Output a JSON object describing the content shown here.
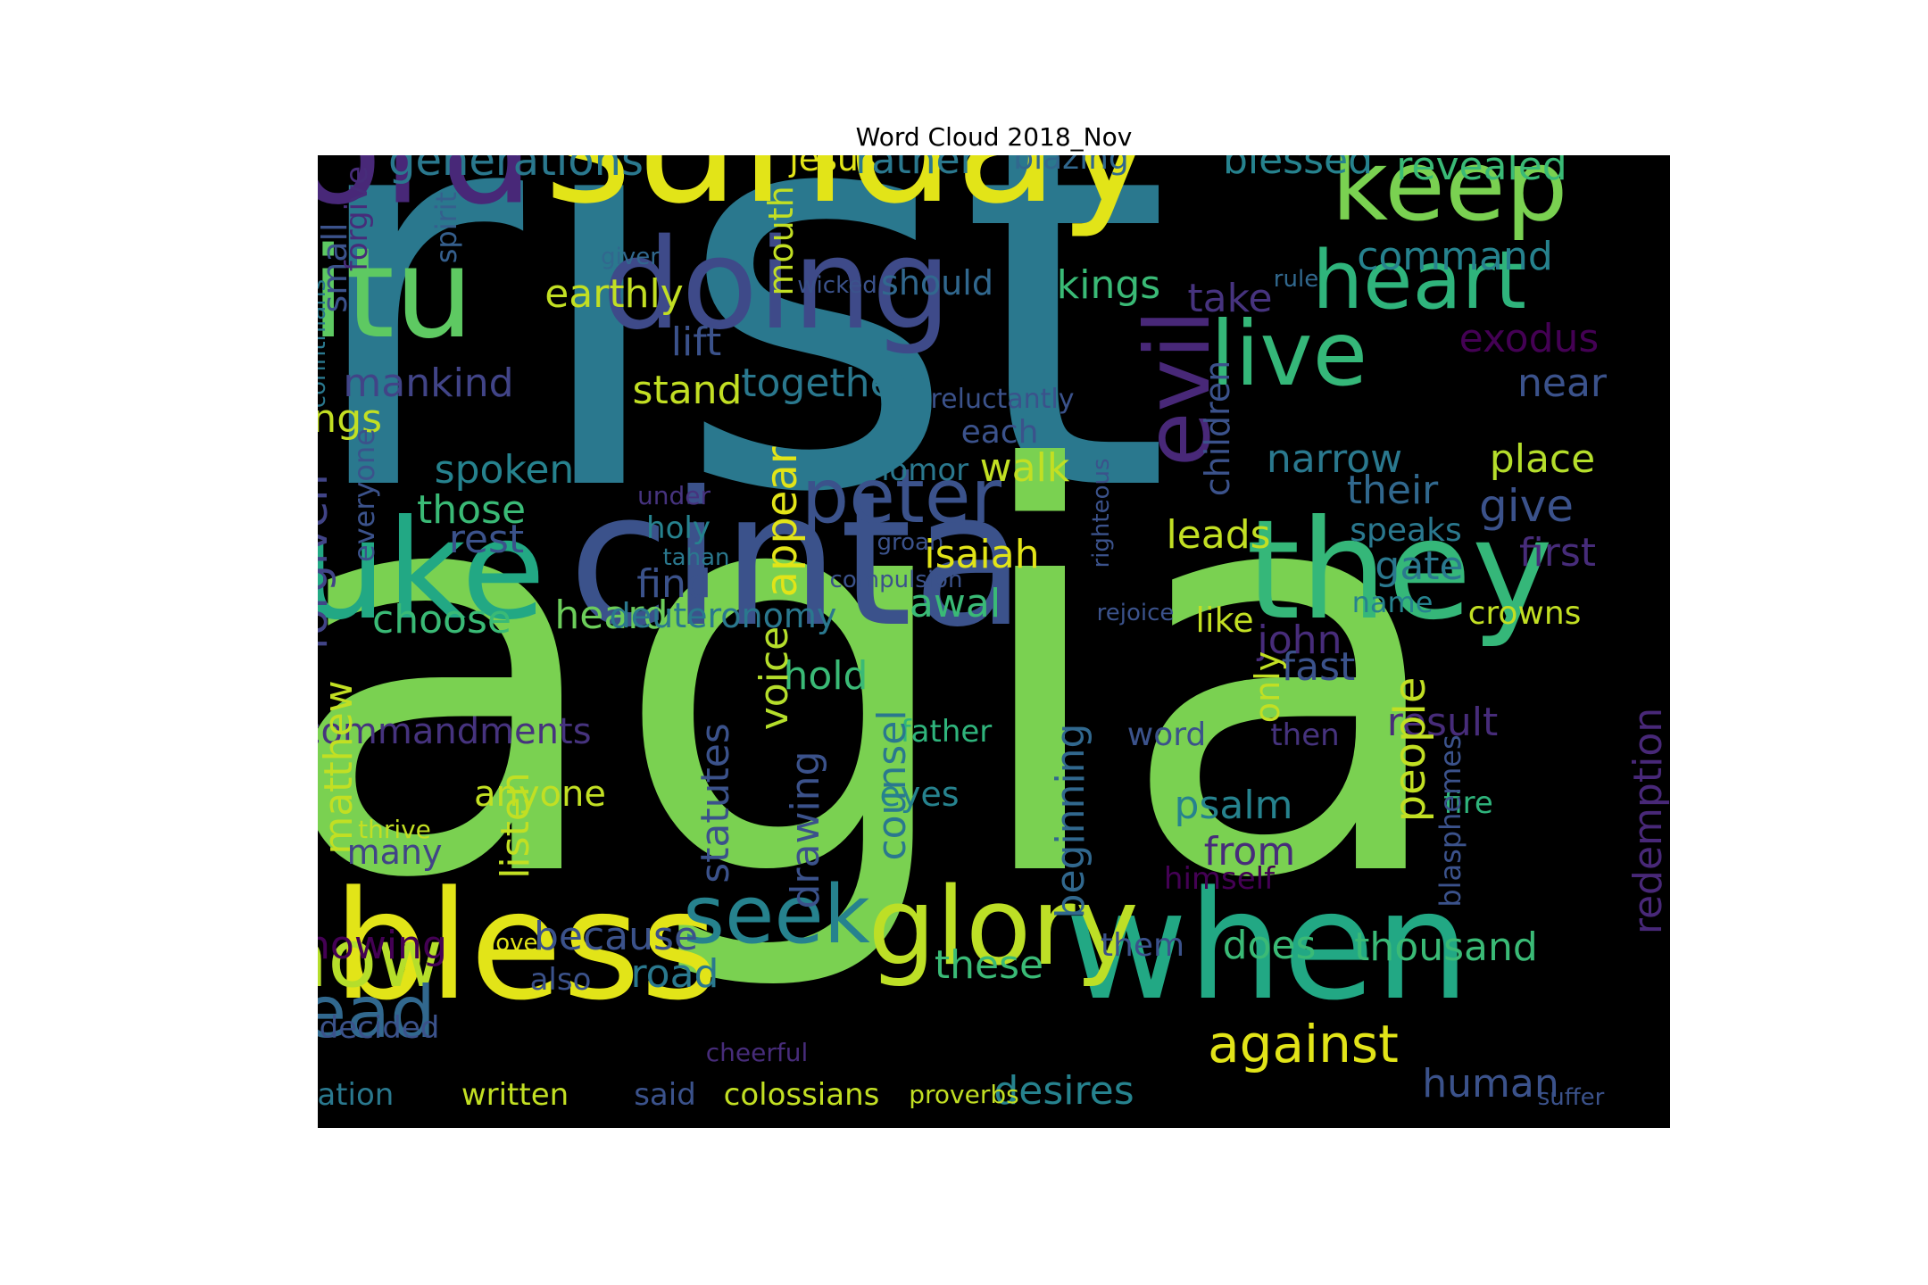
{
  "chart_data": {
    "type": "wordcloud",
    "title": "Word Cloud 2018_Nov",
    "words": [
      {
        "text": "christ",
        "color": "#2a788e"
      },
      {
        "text": "bahagia",
        "color": "#7ad151"
      },
      {
        "text": "cinta",
        "color": "#3b528b"
      },
      {
        "text": "sunday",
        "color": "#e2e418"
      },
      {
        "text": "lord",
        "color": "#482878"
      },
      {
        "text": "bless",
        "color": "#e2e418"
      },
      {
        "text": "when",
        "color": "#22a884"
      },
      {
        "text": "luke",
        "color": "#22a884"
      },
      {
        "text": "they",
        "color": "#35b779"
      },
      {
        "text": "doing",
        "color": "#3e4a89"
      },
      {
        "text": "gitu",
        "color": "#5ec962"
      },
      {
        "text": "glory",
        "color": "#bddf26"
      },
      {
        "text": "keep",
        "color": "#7ad151"
      },
      {
        "text": "heart",
        "color": "#2fb47c"
      },
      {
        "text": "live",
        "color": "#35b779"
      },
      {
        "text": "peter",
        "color": "#3b528b"
      },
      {
        "text": "evil",
        "color": "#482878"
      },
      {
        "text": "know",
        "color": "#b5de2b"
      },
      {
        "text": "head",
        "color": "#31688e"
      },
      {
        "text": "seek",
        "color": "#26828e"
      },
      {
        "text": "against",
        "color": "#e2e418"
      },
      {
        "text": "generations",
        "color": "#2a788e"
      },
      {
        "text": "jesus",
        "color": "#e2e418"
      },
      {
        "text": "rather",
        "color": "#2a788e"
      },
      {
        "text": "blazing",
        "color": "#31688e"
      },
      {
        "text": "blessed",
        "color": "#26828e"
      },
      {
        "text": "revealed",
        "color": "#3aba76"
      },
      {
        "text": "command",
        "color": "#26828e"
      },
      {
        "text": "giver",
        "color": "#31688e"
      },
      {
        "text": "should",
        "color": "#31688e"
      },
      {
        "text": "wicked",
        "color": "#3b528b"
      },
      {
        "text": "rule",
        "color": "#31688e"
      },
      {
        "text": "kings",
        "color": "#3aba76"
      },
      {
        "text": "take",
        "color": "#46337e"
      },
      {
        "text": "earthly",
        "color": "#c2df23"
      },
      {
        "text": "mouth",
        "color": "#c2df23"
      },
      {
        "text": "small",
        "color": "#3b528b"
      },
      {
        "text": "forgive",
        "color": "#472c7a"
      },
      {
        "text": "spirit",
        "color": "#355f8d"
      },
      {
        "text": "corinthians",
        "color": "#2a788e"
      },
      {
        "text": "exodus",
        "color": "#440154"
      },
      {
        "text": "lift",
        "color": "#3b528b"
      },
      {
        "text": "mankind",
        "color": "#414487"
      },
      {
        "text": "stand",
        "color": "#c2df23"
      },
      {
        "text": "together",
        "color": "#2a788e"
      },
      {
        "text": "reluctantly",
        "color": "#3b528b"
      },
      {
        "text": "near",
        "color": "#3b528b"
      },
      {
        "text": "things",
        "color": "#c2df23"
      },
      {
        "text": "each",
        "color": "#3b528b"
      },
      {
        "text": "children",
        "color": "#3b528b"
      },
      {
        "text": "narrow",
        "color": "#2a788e"
      },
      {
        "text": "place",
        "color": "#b5de2b"
      },
      {
        "text": "spoken",
        "color": "#26828e"
      },
      {
        "text": "nomor",
        "color": "#2a788e"
      },
      {
        "text": "walk",
        "color": "#c2df23"
      },
      {
        "text": "appear",
        "color": "#e2e418"
      },
      {
        "text": "forgiven",
        "color": "#414487"
      },
      {
        "text": "everyone",
        "color": "#3b528b"
      },
      {
        "text": "those",
        "color": "#3aba76"
      },
      {
        "text": "rest",
        "color": "#3b528b"
      },
      {
        "text": "under",
        "color": "#46337e"
      },
      {
        "text": "holy",
        "color": "#26828e"
      },
      {
        "text": "tahan",
        "color": "#2a788e"
      },
      {
        "text": "righteous",
        "color": "#3b528b"
      },
      {
        "text": "groan",
        "color": "#3b528b"
      },
      {
        "text": "isaiah",
        "color": "#e2e418"
      },
      {
        "text": "leads",
        "color": "#c2df23"
      },
      {
        "text": "their",
        "color": "#31688e"
      },
      {
        "text": "give",
        "color": "#3b528b"
      },
      {
        "text": "speaks",
        "color": "#2a788e"
      },
      {
        "text": "first",
        "color": "#472c7a"
      },
      {
        "text": "gate",
        "color": "#2a788e"
      },
      {
        "text": "compulsion",
        "color": "#3b528b"
      },
      {
        "text": "find",
        "color": "#3b528b"
      },
      {
        "text": "awal",
        "color": "#3aba76"
      },
      {
        "text": "name",
        "color": "#26828e"
      },
      {
        "text": "crowns",
        "color": "#c2df23"
      },
      {
        "text": "choose",
        "color": "#3aba76"
      },
      {
        "text": "heard",
        "color": "#6ccd5a"
      },
      {
        "text": "deuteronomy",
        "color": "#2a788e"
      },
      {
        "text": "rejoice",
        "color": "#3b528b"
      },
      {
        "text": "like",
        "color": "#c2df23"
      },
      {
        "text": "john",
        "color": "#472c7a"
      },
      {
        "text": "fast",
        "color": "#3b528b"
      },
      {
        "text": "hold",
        "color": "#3aba76"
      },
      {
        "text": "voice",
        "color": "#b5de2b"
      },
      {
        "text": "only",
        "color": "#c2df23"
      },
      {
        "text": "commandments",
        "color": "#46337e"
      },
      {
        "text": "father",
        "color": "#2fb47c"
      },
      {
        "text": "word",
        "color": "#3b528b"
      },
      {
        "text": "then",
        "color": "#46337e"
      },
      {
        "text": "result",
        "color": "#472c7a"
      },
      {
        "text": "matthew",
        "color": "#c2df23"
      },
      {
        "text": "statutes",
        "color": "#3b528b"
      },
      {
        "text": "counsel",
        "color": "#2a788e"
      },
      {
        "text": "eyes",
        "color": "#26828e"
      },
      {
        "text": "beginning",
        "color": "#31688e"
      },
      {
        "text": "people",
        "color": "#c2df23"
      },
      {
        "text": "psalm",
        "color": "#26828e"
      },
      {
        "text": "fire",
        "color": "#2fb47c"
      },
      {
        "text": "redemption",
        "color": "#482878"
      },
      {
        "text": "anyone",
        "color": "#c2df23"
      },
      {
        "text": "thrive",
        "color": "#c2df23"
      },
      {
        "text": "many",
        "color": "#414487"
      },
      {
        "text": "listen",
        "color": "#c2df23"
      },
      {
        "text": "drawing",
        "color": "#3b528b"
      },
      {
        "text": "from",
        "color": "#472c7a"
      },
      {
        "text": "himself",
        "color": "#440154"
      },
      {
        "text": "blasphemes",
        "color": "#3b528b"
      },
      {
        "text": "showing",
        "color": "#440154"
      },
      {
        "text": "loves",
        "color": "#e2e418"
      },
      {
        "text": "because",
        "color": "#3b528b"
      },
      {
        "text": "them",
        "color": "#3b528b"
      },
      {
        "text": "does",
        "color": "#3aba76"
      },
      {
        "text": "thousand",
        "color": "#3aba76"
      },
      {
        "text": "road",
        "color": "#2a788e"
      },
      {
        "text": "these",
        "color": "#3aba76"
      },
      {
        "text": "also",
        "color": "#3b528b"
      },
      {
        "text": "decided",
        "color": "#3b528b"
      },
      {
        "text": "cheerful",
        "color": "#472c7a"
      },
      {
        "text": "desires",
        "color": "#26828e"
      },
      {
        "text": "human",
        "color": "#3b528b"
      },
      {
        "text": "revelation",
        "color": "#2a788e"
      },
      {
        "text": "written",
        "color": "#c2df23"
      },
      {
        "text": "said",
        "color": "#3b528b"
      },
      {
        "text": "colossians",
        "color": "#c2df23"
      },
      {
        "text": "proverbs",
        "color": "#c2df23"
      },
      {
        "text": "suffer",
        "color": "#3b528b"
      }
    ]
  }
}
